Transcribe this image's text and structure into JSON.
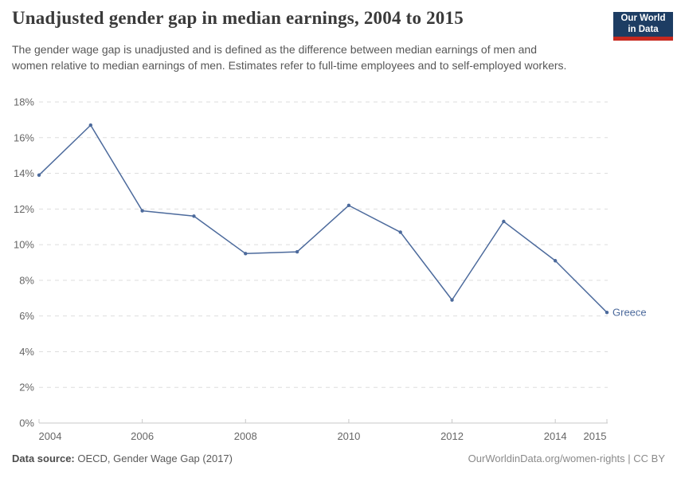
{
  "header": {
    "title": "Unadjusted gender gap in median earnings, 2004 to 2015",
    "subtitle": "The gender wage gap is unadjusted and is defined as the difference between median earnings of men and women relative to median earnings of men. Estimates refer to full-time employees and to self-employed workers.",
    "logo": {
      "line1": "Our World",
      "line2": "in Data",
      "bg_color": "#1d3d63",
      "stripe_color": "#c7291f"
    }
  },
  "chart_data": {
    "type": "line",
    "title": "Unadjusted gender gap in median earnings, 2004 to 2015",
    "x": [
      2004,
      2005,
      2006,
      2007,
      2008,
      2009,
      2010,
      2011,
      2012,
      2013,
      2014,
      2015
    ],
    "series": [
      {
        "name": "Greece",
        "color": "#4c6a9c",
        "values": [
          13.9,
          16.7,
          11.9,
          11.6,
          9.5,
          9.6,
          12.2,
          10.7,
          6.9,
          11.3,
          9.1,
          6.2
        ]
      }
    ],
    "ylim": [
      0,
      18
    ],
    "y_tick_step": 2,
    "y_tick_suffix": "%",
    "x_tick_labels": [
      2004,
      2006,
      2008,
      2010,
      2012,
      2014,
      2015
    ],
    "grid": "horizontal-dashed",
    "legend_position": "end-of-line-label",
    "gridline_color": "#dddddd",
    "axis_color": "#c8c8c8",
    "tick_label_color": "#666666",
    "end_label": "Greece"
  },
  "footer": {
    "source_label": "Data source:",
    "source_text": "OECD, Gender Wage Gap (2017)",
    "credit": "OurWorldinData.org/women-rights | CC BY"
  }
}
